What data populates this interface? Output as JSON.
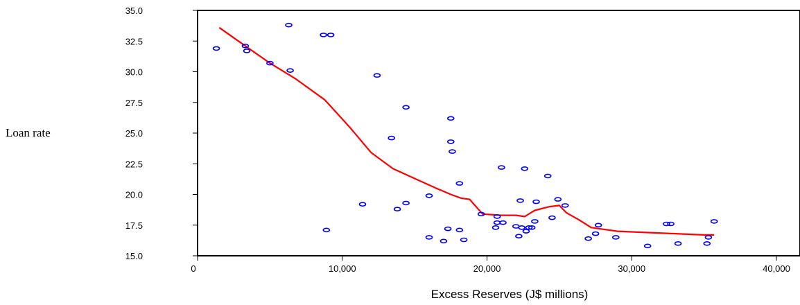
{
  "chart_data": {
    "type": "scatter",
    "title": "",
    "xlabel": "Excess Reserves (J$ millions)",
    "ylabel": "Loan rate",
    "xlim": [
      0,
      40000
    ],
    "ylim": [
      15.0,
      35.0
    ],
    "x_ticks": [
      0,
      10000,
      20000,
      30000,
      40000
    ],
    "x_tick_labels": [
      "0",
      "10,000",
      "20,000",
      "30,000",
      "40,000"
    ],
    "y_ticks": [
      15.0,
      17.5,
      20.0,
      22.5,
      25.0,
      27.5,
      30.0,
      32.5,
      35.0
    ],
    "y_tick_labels": [
      "15.0",
      "17.5",
      "20.0",
      "22.5",
      "25.0",
      "27.5",
      "30.0",
      "32.5",
      "35.0"
    ],
    "grid": false,
    "colors": {
      "points": "#0000ff",
      "fit_line": "#ff0000",
      "axes": "#000000"
    },
    "series": [
      {
        "kind": "scatter",
        "points": [
          [
            1300,
            31.9
          ],
          [
            3300,
            32.1
          ],
          [
            3400,
            31.7
          ],
          [
            5000,
            30.7
          ],
          [
            6300,
            33.8
          ],
          [
            6400,
            30.1
          ],
          [
            8700,
            33.0
          ],
          [
            9200,
            33.0
          ],
          [
            8900,
            17.1
          ],
          [
            11400,
            19.2
          ],
          [
            12400,
            29.7
          ],
          [
            13400,
            24.6
          ],
          [
            14400,
            27.1
          ],
          [
            13800,
            18.8
          ],
          [
            14400,
            19.3
          ],
          [
            16000,
            19.9
          ],
          [
            16000,
            16.5
          ],
          [
            17000,
            16.2
          ],
          [
            17300,
            17.2
          ],
          [
            17500,
            26.2
          ],
          [
            17500,
            24.3
          ],
          [
            17600,
            23.5
          ],
          [
            18100,
            20.9
          ],
          [
            18100,
            17.1
          ],
          [
            18400,
            16.3
          ],
          [
            19600,
            18.4
          ],
          [
            20600,
            17.3
          ],
          [
            20700,
            18.2
          ],
          [
            20700,
            17.7
          ],
          [
            21000,
            22.2
          ],
          [
            21100,
            17.7
          ],
          [
            22000,
            17.4
          ],
          [
            22200,
            16.6
          ],
          [
            22300,
            19.5
          ],
          [
            22400,
            17.3
          ],
          [
            22600,
            22.1
          ],
          [
            22700,
            17.0
          ],
          [
            22900,
            17.3
          ],
          [
            23100,
            17.3
          ],
          [
            23300,
            17.8
          ],
          [
            23400,
            19.4
          ],
          [
            24200,
            21.5
          ],
          [
            24500,
            18.1
          ],
          [
            24900,
            19.6
          ],
          [
            25400,
            19.1
          ],
          [
            27000,
            16.4
          ],
          [
            27500,
            16.8
          ],
          [
            27700,
            17.5
          ],
          [
            28900,
            16.5
          ],
          [
            31100,
            15.8
          ],
          [
            32400,
            17.6
          ],
          [
            32700,
            17.6
          ],
          [
            33200,
            16.0
          ],
          [
            35200,
            16.0
          ],
          [
            35300,
            16.5
          ],
          [
            35700,
            17.8
          ]
        ]
      },
      {
        "kind": "line",
        "points": [
          [
            1500,
            33.6
          ],
          [
            3300,
            32.1
          ],
          [
            5000,
            30.7
          ],
          [
            6800,
            29.4
          ],
          [
            8800,
            27.7
          ],
          [
            10500,
            25.5
          ],
          [
            12000,
            23.4
          ],
          [
            13500,
            22.1
          ],
          [
            15000,
            21.3
          ],
          [
            16500,
            20.5
          ],
          [
            17500,
            20.0
          ],
          [
            18200,
            19.7
          ],
          [
            18800,
            19.6
          ],
          [
            19700,
            18.4
          ],
          [
            21000,
            18.3
          ],
          [
            22000,
            18.3
          ],
          [
            22600,
            18.2
          ],
          [
            23300,
            18.7
          ],
          [
            24300,
            19.0
          ],
          [
            25000,
            19.1
          ],
          [
            25500,
            18.5
          ],
          [
            26400,
            17.9
          ],
          [
            27200,
            17.3
          ],
          [
            29000,
            17.0
          ],
          [
            31000,
            16.9
          ],
          [
            33000,
            16.8
          ],
          [
            35000,
            16.7
          ],
          [
            35700,
            16.7
          ]
        ]
      }
    ]
  }
}
